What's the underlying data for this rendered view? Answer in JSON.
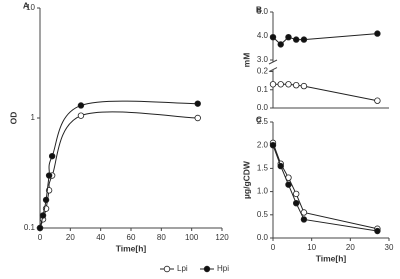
{
  "chart_data": [
    {
      "type": "line",
      "panel_label": "A",
      "xlabel": "Time[h]",
      "ylabel": "OD",
      "log_y": true,
      "smooth": true,
      "x": [
        0,
        2,
        4,
        6,
        8,
        27,
        104
      ],
      "xlim": [
        0,
        120
      ],
      "xticks": [
        0,
        20,
        40,
        60,
        80,
        100,
        120
      ],
      "ylim": [
        0.1,
        10
      ],
      "yticks": [
        0.1,
        1,
        10
      ],
      "series": [
        {
          "marker": "open",
          "values": [
            0.1,
            0.12,
            0.15,
            0.22,
            0.3,
            1.05,
            1.0
          ]
        },
        {
          "marker": "filled",
          "values": [
            0.1,
            0.13,
            0.18,
            0.3,
            0.45,
            1.3,
            1.35
          ]
        }
      ]
    },
    {
      "type": "line",
      "panel_label": "B",
      "ylabel": "mM",
      "axis_break": [
        0.2,
        3.0
      ],
      "x": [
        0,
        2,
        4,
        6,
        8,
        27
      ],
      "xlim": [
        0,
        30
      ],
      "ylim": [
        0,
        5
      ],
      "yticks": [
        {
          "value": 0,
          "label": "0.0"
        },
        0.1,
        0.2,
        {
          "value": 3,
          "label": "3.0"
        },
        {
          "value": 4,
          "label": "4.0"
        },
        {
          "value": 5,
          "label": "5.0"
        }
      ],
      "series": [
        {
          "marker": "open",
          "values": [
            0.13,
            0.13,
            0.13,
            0.125,
            0.12,
            0.04
          ]
        },
        {
          "marker": "filled",
          "values": [
            3.95,
            3.65,
            3.95,
            3.85,
            3.85,
            4.1
          ]
        }
      ]
    },
    {
      "type": "line",
      "panel_label": "C",
      "xlabel": "Time[h]",
      "ylabel": "µg/gCDW",
      "x": [
        0,
        2,
        4,
        6,
        8,
        27
      ],
      "xlim": [
        0,
        30
      ],
      "xticks": [
        0,
        10,
        20,
        30
      ],
      "ylim": [
        0,
        2.5
      ],
      "yticks": [
        {
          "value": 0,
          "label": "0.0"
        },
        0.5,
        {
          "value": 1,
          "label": "1.0"
        },
        {
          "value": 1.5,
          "label": "1.5"
        },
        {
          "value": 2,
          "label": "2.0"
        },
        {
          "value": 2.5,
          "label": "2.5"
        }
      ],
      "series": [
        {
          "marker": "open",
          "values": [
            2.05,
            1.6,
            1.3,
            0.95,
            0.55,
            0.2
          ]
        },
        {
          "marker": "filled",
          "values": [
            2.0,
            1.55,
            1.15,
            0.75,
            0.4,
            0.15
          ]
        }
      ]
    }
  ],
  "legend": {
    "position": "bottom",
    "entries": [
      {
        "label": "Lpi",
        "marker": "open"
      },
      {
        "label": "Hpi",
        "marker": "filled"
      }
    ]
  }
}
